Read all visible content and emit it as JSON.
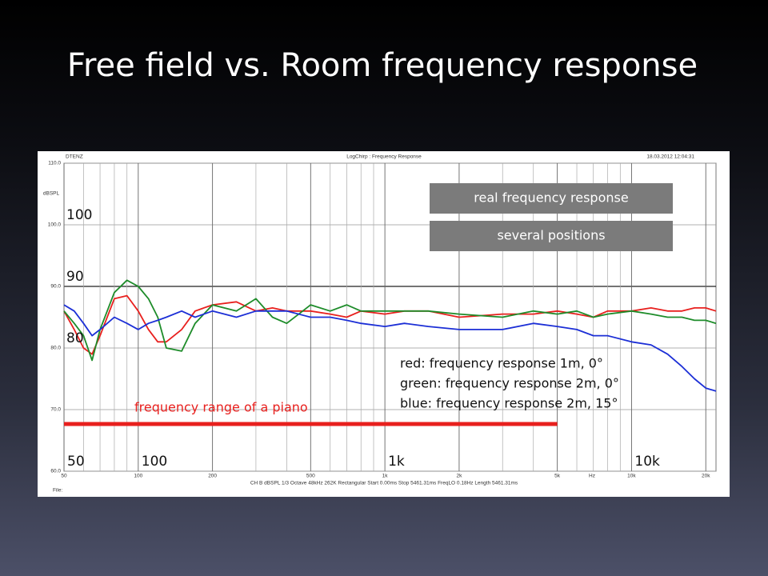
{
  "slide": {
    "title": "Free field vs. Room frequency response"
  },
  "chart_data": {
    "type": "line",
    "header_left": "DTENZ",
    "header_center": "LogChirp : Frequency Response",
    "header_right": "18.03.2012 12:04:31",
    "y_label": "dBSPL",
    "x_unit_label": "Hz",
    "footer": "CH B  dBSPL  1/3 Octave  48kHz  262K  Rectangular  Start 0.00ms  Stop 5461.31ms  FreqLO 0.18Hz  Length 5461.31ms",
    "file_label": "File:",
    "x_scale": "log",
    "xlim": [
      50,
      22000
    ],
    "ylim": [
      60,
      110
    ],
    "xticks": [
      50,
      100,
      200,
      500,
      {
        "value": 1000,
        "label": "1k"
      },
      {
        "value": 2000,
        "label": "2k"
      },
      {
        "value": 5000,
        "label": "5k"
      },
      {
        "value": 10000,
        "label": "10k"
      },
      {
        "value": 20000,
        "label": "20k"
      }
    ],
    "x_minor_ticks": [
      60,
      70,
      80,
      90,
      300,
      400,
      600,
      700,
      800,
      900,
      3000,
      4000,
      6000,
      7000,
      8000,
      9000
    ],
    "yticks": [
      {
        "value": 60,
        "label": "60.0"
      },
      {
        "value": 70,
        "label": "70.0"
      },
      {
        "value": 80,
        "label": "80.0"
      },
      {
        "value": 90,
        "label": "90.0"
      },
      {
        "value": 100,
        "label": "100.0"
      },
      {
        "value": 110,
        "label": "110.0"
      }
    ],
    "reference_y": 90,
    "grid": true,
    "x": [
      50,
      55,
      60,
      65,
      70,
      80,
      90,
      100,
      110,
      120,
      130,
      150,
      170,
      200,
      250,
      300,
      350,
      400,
      500,
      600,
      700,
      800,
      1000,
      1200,
      1500,
      2000,
      3000,
      4000,
      5000,
      6000,
      7000,
      8000,
      10000,
      12000,
      14000,
      16000,
      18000,
      20000,
      22000
    ],
    "series": [
      {
        "name": "red",
        "color": "#e8201e",
        "values": [
          86,
          83,
          80,
          79,
          82,
          88,
          88.5,
          86,
          83,
          81,
          81,
          83,
          86,
          87,
          87.5,
          86,
          86.5,
          86,
          86,
          85.5,
          85,
          86,
          85.5,
          86,
          86,
          85,
          85.5,
          85.5,
          86,
          85.5,
          85,
          86,
          86,
          86.5,
          86,
          86,
          86.5,
          86.5,
          86
        ]
      },
      {
        "name": "green",
        "color": "#1e8c2a",
        "values": [
          86,
          84,
          82,
          78,
          83,
          89,
          91,
          90,
          88,
          85,
          80,
          79.5,
          84,
          87,
          86,
          88,
          85,
          84,
          87,
          86,
          87,
          86,
          86,
          86,
          86,
          85.5,
          85,
          86,
          85.5,
          86,
          85,
          85.5,
          86,
          85.5,
          85,
          85,
          84.5,
          84.5,
          84
        ]
      },
      {
        "name": "blue",
        "color": "#1c2fd6",
        "values": [
          87,
          86,
          84,
          82,
          83,
          85,
          84,
          83,
          84,
          84.5,
          85,
          86,
          85,
          86,
          85,
          86,
          86,
          86,
          85,
          85,
          84.5,
          84,
          83.5,
          84,
          83.5,
          83,
          83,
          84,
          83.5,
          83,
          82,
          82,
          81,
          80.5,
          79,
          77,
          75,
          73.5,
          73
        ]
      }
    ],
    "badges": [
      "real frequency response",
      "several positions"
    ],
    "notes": [
      "red: frequency response 1m, 0°",
      "green: frequency response 2m, 0°",
      "blue: frequency response 2m, 15°"
    ],
    "big_labels_y": [
      {
        "value": 100,
        "label": "100"
      },
      {
        "value": 90,
        "label": "90"
      },
      {
        "value": 80,
        "label": "80"
      }
    ],
    "big_labels_x": [
      {
        "value": 50,
        "label": "50"
      },
      {
        "value": 100,
        "label": "100"
      },
      {
        "value": 1000,
        "label": "1k"
      },
      {
        "value": 10000,
        "label": "10k"
      }
    ],
    "piano_range": {
      "label": "frequency range of a piano",
      "from": 50,
      "to": 5000,
      "color": "#e8201e"
    }
  }
}
